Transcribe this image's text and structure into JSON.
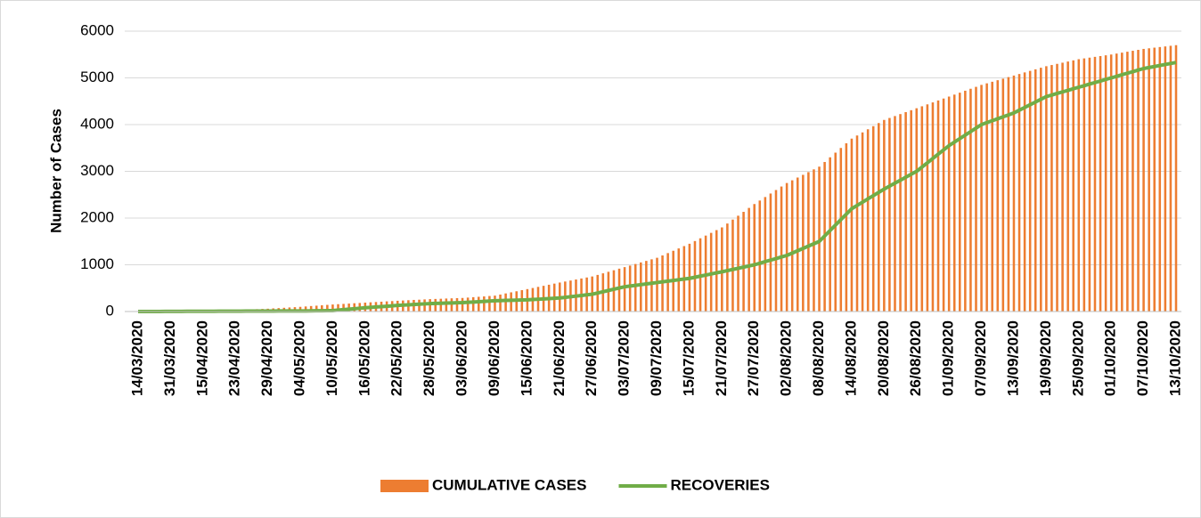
{
  "chart_data": {
    "type": "bar_line",
    "y_label": "Number of Cases",
    "categories": [
      "14/03/2020",
      null,
      null,
      null,
      null,
      null,
      "31/03/2020",
      null,
      null,
      null,
      null,
      null,
      "15/04/2020",
      null,
      null,
      null,
      null,
      null,
      "23/04/2020",
      null,
      null,
      null,
      null,
      null,
      "29/04/2020",
      null,
      null,
      null,
      null,
      null,
      "04/05/2020",
      null,
      null,
      null,
      null,
      null,
      "10/05/2020",
      null,
      null,
      null,
      null,
      null,
      "16/05/2020",
      null,
      null,
      null,
      null,
      null,
      "22/05/2020",
      null,
      null,
      null,
      null,
      null,
      "28/05/2020",
      null,
      null,
      null,
      null,
      null,
      "03/06/2020",
      null,
      null,
      null,
      null,
      null,
      "09/06/2020",
      null,
      null,
      null,
      null,
      null,
      "15/06/2020",
      null,
      null,
      null,
      null,
      null,
      "21/06/2020",
      null,
      null,
      null,
      null,
      null,
      "27/06/2020",
      null,
      null,
      null,
      null,
      null,
      "03/07/2020",
      null,
      null,
      null,
      null,
      null,
      "09/07/2020",
      null,
      null,
      null,
      null,
      null,
      "15/07/2020",
      null,
      null,
      null,
      null,
      null,
      "21/07/2020",
      null,
      null,
      null,
      null,
      null,
      "27/07/2020",
      null,
      null,
      null,
      null,
      null,
      "02/08/2020",
      null,
      null,
      null,
      null,
      null,
      "08/08/2020",
      null,
      null,
      null,
      null,
      null,
      "14/08/2020",
      null,
      null,
      null,
      null,
      null,
      "20/08/2020",
      null,
      null,
      null,
      null,
      null,
      "26/08/2020",
      null,
      null,
      null,
      null,
      null,
      "01/09/2020",
      null,
      null,
      null,
      null,
      null,
      "07/09/2020",
      null,
      null,
      null,
      null,
      null,
      "13/09/2020",
      null,
      null,
      null,
      null,
      null,
      "19/09/2020",
      null,
      null,
      null,
      null,
      null,
      "25/09/2020",
      null,
      null,
      null,
      null,
      null,
      "01/10/2020",
      null,
      null,
      null,
      null,
      null,
      "07/10/2020",
      null,
      null,
      null,
      null,
      null,
      "13/10/2020"
    ],
    "series": [
      {
        "name": "CUMULATIVE CASES",
        "kind": "bar",
        "color": "#ED7D31",
        "values": [
          0,
          1,
          2,
          3,
          3,
          4,
          5,
          7,
          8,
          10,
          12,
          13,
          15,
          18,
          20,
          23,
          25,
          28,
          30,
          35,
          40,
          45,
          50,
          55,
          60,
          67,
          73,
          80,
          87,
          93,
          100,
          108,
          117,
          125,
          133,
          142,
          150,
          157,
          163,
          170,
          177,
          183,
          190,
          197,
          203,
          210,
          217,
          223,
          230,
          236,
          242,
          248,
          253,
          259,
          265,
          269,
          273,
          278,
          282,
          286,
          290,
          298,
          307,
          315,
          323,
          332,
          340,
          363,
          387,
          410,
          433,
          457,
          480,
          503,
          527,
          550,
          573,
          597,
          620,
          642,
          663,
          685,
          707,
          728,
          750,
          783,
          817,
          850,
          883,
          917,
          950,
          983,
          1017,
          1050,
          1083,
          1117,
          1150,
          1200,
          1250,
          1300,
          1350,
          1400,
          1450,
          1508,
          1567,
          1625,
          1683,
          1742,
          1800,
          1883,
          1967,
          2050,
          2133,
          2217,
          2300,
          2375,
          2450,
          2525,
          2600,
          2675,
          2750,
          2808,
          2867,
          2925,
          2983,
          3042,
          3100,
          3200,
          3300,
          3400,
          3500,
          3600,
          3700,
          3767,
          3833,
          3900,
          3967,
          4033,
          4100,
          4142,
          4183,
          4225,
          4267,
          4308,
          4350,
          4392,
          4433,
          4475,
          4517,
          4558,
          4600,
          4642,
          4683,
          4725,
          4767,
          4808,
          4850,
          4883,
          4917,
          4950,
          4983,
          5017,
          5050,
          5083,
          5117,
          5150,
          5183,
          5217,
          5250,
          5275,
          5300,
          5325,
          5350,
          5375,
          5400,
          5417,
          5433,
          5450,
          5467,
          5483,
          5500,
          5520,
          5540,
          5560,
          5580,
          5600,
          5620,
          5633,
          5647,
          5660,
          5673,
          5687,
          5700
        ]
      },
      {
        "name": "RECOVERIES",
        "kind": "line",
        "color": "#70AD47",
        "values": [
          0,
          0,
          1,
          1,
          1,
          2,
          2,
          3,
          3,
          4,
          4,
          5,
          5,
          6,
          6,
          7,
          7,
          8,
          8,
          8,
          9,
          9,
          9,
          10,
          10,
          10,
          11,
          11,
          11,
          12,
          12,
          13,
          15,
          16,
          17,
          19,
          20,
          30,
          40,
          50,
          60,
          70,
          80,
          88,
          97,
          105,
          113,
          122,
          130,
          137,
          143,
          150,
          157,
          163,
          170,
          173,
          177,
          180,
          183,
          187,
          190,
          197,
          203,
          210,
          217,
          223,
          230,
          233,
          237,
          240,
          243,
          247,
          250,
          257,
          263,
          270,
          277,
          283,
          290,
          303,
          317,
          330,
          343,
          357,
          370,
          397,
          423,
          450,
          477,
          503,
          530,
          545,
          560,
          575,
          590,
          605,
          620,
          635,
          650,
          665,
          680,
          695,
          710,
          733,
          757,
          780,
          803,
          827,
          850,
          875,
          900,
          925,
          950,
          975,
          1000,
          1033,
          1067,
          1100,
          1133,
          1167,
          1200,
          1250,
          1300,
          1350,
          1400,
          1450,
          1500,
          1617,
          1733,
          1850,
          1967,
          2083,
          2200,
          2270,
          2340,
          2410,
          2480,
          2550,
          2620,
          2683,
          2747,
          2810,
          2873,
          2937,
          3000,
          3092,
          3183,
          3275,
          3367,
          3458,
          3550,
          3625,
          3700,
          3775,
          3850,
          3925,
          4000,
          4042,
          4083,
          4125,
          4167,
          4208,
          4250,
          4308,
          4367,
          4425,
          4483,
          4542,
          4600,
          4633,
          4667,
          4700,
          4733,
          4767,
          4800,
          4833,
          4867,
          4900,
          4933,
          4967,
          5000,
          5033,
          5067,
          5100,
          5133,
          5167,
          5200,
          5222,
          5243,
          5265,
          5287,
          5308,
          5330
        ]
      }
    ],
    "ylim": [
      0,
      6000
    ],
    "yticks": [
      0,
      1000,
      2000,
      3000,
      4000,
      5000,
      6000
    ],
    "grid": true,
    "legend": "bottom"
  }
}
